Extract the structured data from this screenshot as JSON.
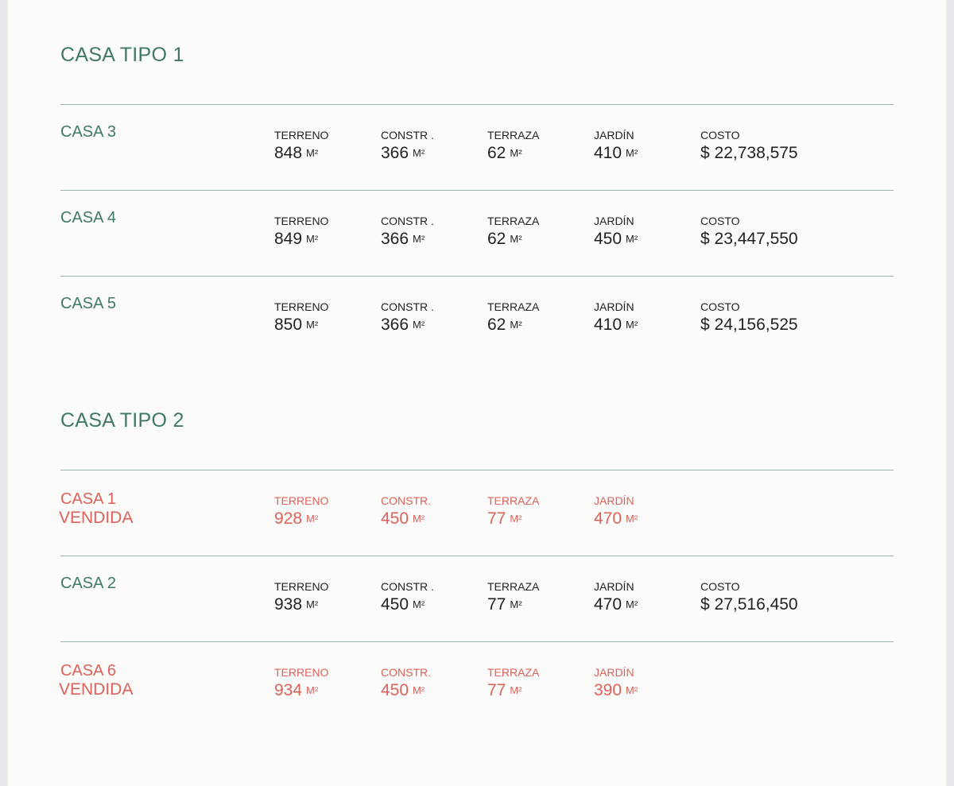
{
  "sections": [
    {
      "title": "CASA TIPO 1",
      "rows": [
        {
          "name": "CASA 3",
          "fields": [
            {
              "label": "TERRENO",
              "value": "848",
              "unit": "M²"
            },
            {
              "label": "CONSTR .",
              "value": "366",
              "unit": "M²"
            },
            {
              "label": "TERRAZA",
              "value": "62",
              "unit": "M²"
            },
            {
              "label": "JARDÍN",
              "value": "410",
              "unit": "M²"
            },
            {
              "label": "COSTO",
              "value": "$ 22,738,575"
            }
          ]
        },
        {
          "name": "CASA 4",
          "fields": [
            {
              "label": "TERRENO",
              "value": "849",
              "unit": "M²"
            },
            {
              "label": "CONSTR .",
              "value": "366",
              "unit": "M²"
            },
            {
              "label": "TERRAZA",
              "value": "62",
              "unit": "M²"
            },
            {
              "label": "JARDÍN",
              "value": "450",
              "unit": "M²"
            },
            {
              "label": "COSTO",
              "value": "$ 23,447,550"
            }
          ]
        },
        {
          "name": "CASA 5",
          "fields": [
            {
              "label": "TERRENO",
              "value": "850",
              "unit": "M²"
            },
            {
              "label": "CONSTR .",
              "value": "366",
              "unit": "M²"
            },
            {
              "label": "TERRAZA",
              "value": "62",
              "unit": "M²"
            },
            {
              "label": "JARDÍN",
              "value": "410",
              "unit": "M²"
            },
            {
              "label": "COSTO",
              "value": "$ 24,156,525"
            }
          ]
        }
      ]
    },
    {
      "title": "CASA TIPO 2",
      "rows": [
        {
          "name": "CASA 1",
          "status": "VENDIDA",
          "fields": [
            {
              "label": "TERRENO",
              "value": "928",
              "unit": "M²"
            },
            {
              "label": "CONSTR.",
              "value": "450",
              "unit": "M²"
            },
            {
              "label": "TERRAZA",
              "value": "77",
              "unit": "M²"
            },
            {
              "label": "JARDÍN",
              "value": "470",
              "unit": "M²"
            }
          ]
        },
        {
          "name": "CASA 2",
          "fields": [
            {
              "label": "TERRENO",
              "value": "938",
              "unit": "M²"
            },
            {
              "label": "CONSTR .",
              "value": "450",
              "unit": "M²"
            },
            {
              "label": "TERRAZA",
              "value": "77",
              "unit": "M²"
            },
            {
              "label": "JARDÍN",
              "value": "470",
              "unit": "M²"
            },
            {
              "label": "COSTO",
              "value": "$ 27,516,450"
            }
          ]
        },
        {
          "name": "CASA 6",
          "status": "VENDIDA",
          "fields": [
            {
              "label": "TERRENO",
              "value": "934",
              "unit": "M²"
            },
            {
              "label": "CONSTR.",
              "value": "450",
              "unit": "M²"
            },
            {
              "label": "TERRAZA",
              "value": "77",
              "unit": "M²"
            },
            {
              "label": "JARDÍN",
              "value": "390",
              "unit": "M²"
            }
          ]
        }
      ]
    }
  ]
}
